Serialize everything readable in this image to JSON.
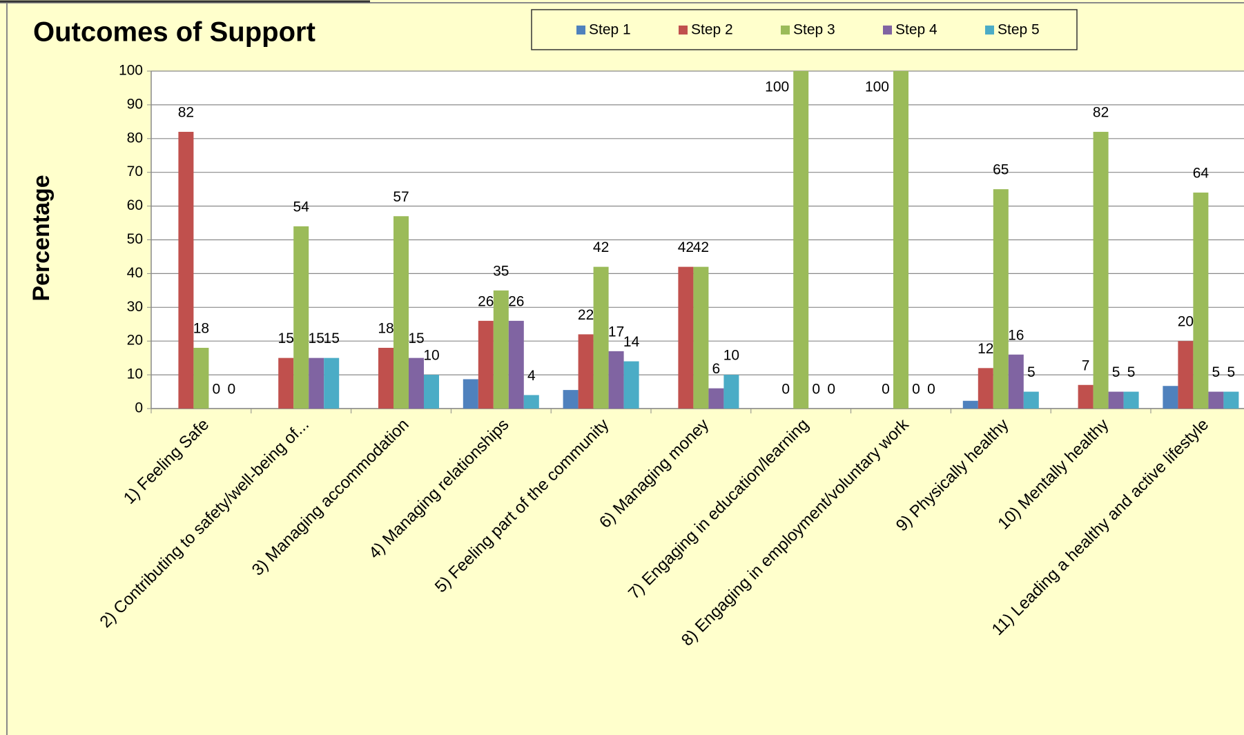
{
  "chart_data": {
    "type": "bar",
    "title": "Outcomes of Support",
    "y_label": "Percentage",
    "categories": [
      "1) Feeling Safe",
      "2) Contributing to safety/well-being of...",
      "3) Managing accommodation",
      "4) Managing relationships",
      "5) Feeling part of the community",
      "6) Managing money",
      "7) Engaging in education/learning",
      "8) Engaging in employment/voluntary work",
      "9) Physically healthy",
      "10) Mentally healthy",
      "11) Leading a healthy and active lifestyle"
    ],
    "series": [
      {
        "name": "Step 1",
        "color": "#4f81bd",
        "values": [
          0,
          0,
          0,
          8.7,
          5.5,
          0,
          0,
          0,
          2.3,
          0,
          6.7
        ],
        "value_labels": [
          null,
          null,
          null,
          null,
          null,
          null,
          null,
          null,
          null,
          null,
          null
        ]
      },
      {
        "name": "Step 2",
        "color": "#c0504d",
        "values": [
          82,
          15,
          18,
          26,
          22,
          42,
          0,
          0,
          12,
          7,
          20
        ],
        "value_labels": [
          "82",
          "15",
          "18",
          "26",
          "22",
          "42",
          "0",
          "0",
          "12",
          "7",
          "20"
        ]
      },
      {
        "name": "Step 3",
        "color": "#9bbb59",
        "values": [
          18,
          54,
          57,
          35,
          42,
          42,
          100,
          100,
          65,
          82,
          64
        ],
        "value_labels": [
          "18",
          "54",
          "57",
          "35",
          "42",
          "42",
          "100",
          "100",
          "65",
          "82",
          "64"
        ]
      },
      {
        "name": "Step 4",
        "color": "#8064a2",
        "values": [
          0,
          15,
          15,
          26,
          17,
          6,
          0,
          0,
          16,
          5,
          5
        ],
        "value_labels": [
          "0",
          "15",
          "15",
          "26",
          "17",
          "6",
          "0",
          "0",
          "16",
          "5",
          "5"
        ]
      },
      {
        "name": "Step 5",
        "color": "#4bacc6",
        "values": [
          0,
          15,
          10,
          4,
          14,
          10,
          0,
          0,
          5,
          5,
          5
        ],
        "value_labels": [
          "0",
          "15",
          "10",
          "4",
          "14",
          "10",
          "0",
          "0",
          "5",
          "5",
          "5"
        ]
      }
    ],
    "ylim": [
      0,
      100
    ],
    "yticks": [
      0,
      10,
      20,
      30,
      40,
      50,
      60,
      70,
      80,
      90,
      100
    ],
    "grid": true,
    "legend": "top"
  }
}
